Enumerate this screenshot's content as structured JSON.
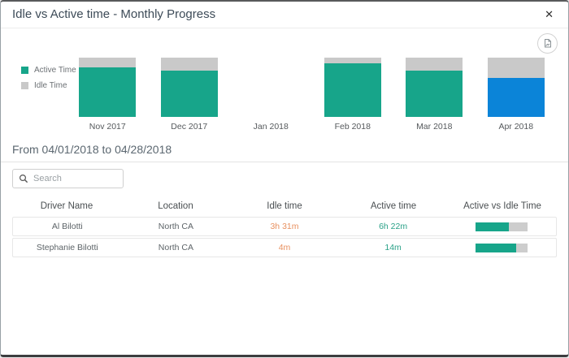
{
  "modal": {
    "title": "Idle vs Active time - Monthly Progress",
    "close_glyph": "✕"
  },
  "toolbar": {
    "export_icon": "export-image-icon"
  },
  "chart_data": {
    "type": "bar",
    "stacked": true,
    "normalized_percent": true,
    "title": "",
    "categories": [
      "Nov 2017",
      "Dec 2017",
      "Jan 2018",
      "Feb 2018",
      "Mar 2018",
      "Apr 2018"
    ],
    "series": [
      {
        "name": "Active Time",
        "values_pct": [
          84,
          78,
          0,
          91,
          78,
          66
        ]
      },
      {
        "name": "Idle Time",
        "values_pct": [
          16,
          22,
          0,
          9,
          22,
          34
        ]
      }
    ],
    "selected_category": "Apr 2018",
    "legend_position": "left",
    "colors": {
      "active": "#17a58a",
      "idle": "#c9c9c9",
      "selected_active": "#0b84d8"
    }
  },
  "period": {
    "label": "From 04/01/2018 to 04/28/2018"
  },
  "search": {
    "placeholder": "Search",
    "value": ""
  },
  "table": {
    "columns": [
      "Driver Name",
      "Location",
      "Idle time",
      "Active time",
      "Active vs Idle Time"
    ],
    "rows": [
      {
        "driver": "Al Bilotti",
        "location": "North CA",
        "idle": "3h 31m",
        "active": "6h 22m",
        "active_pct": 64
      },
      {
        "driver": "Stephanie Bilotti",
        "location": "North CA",
        "idle": "4m",
        "active": "14m",
        "active_pct": 78
      }
    ]
  }
}
